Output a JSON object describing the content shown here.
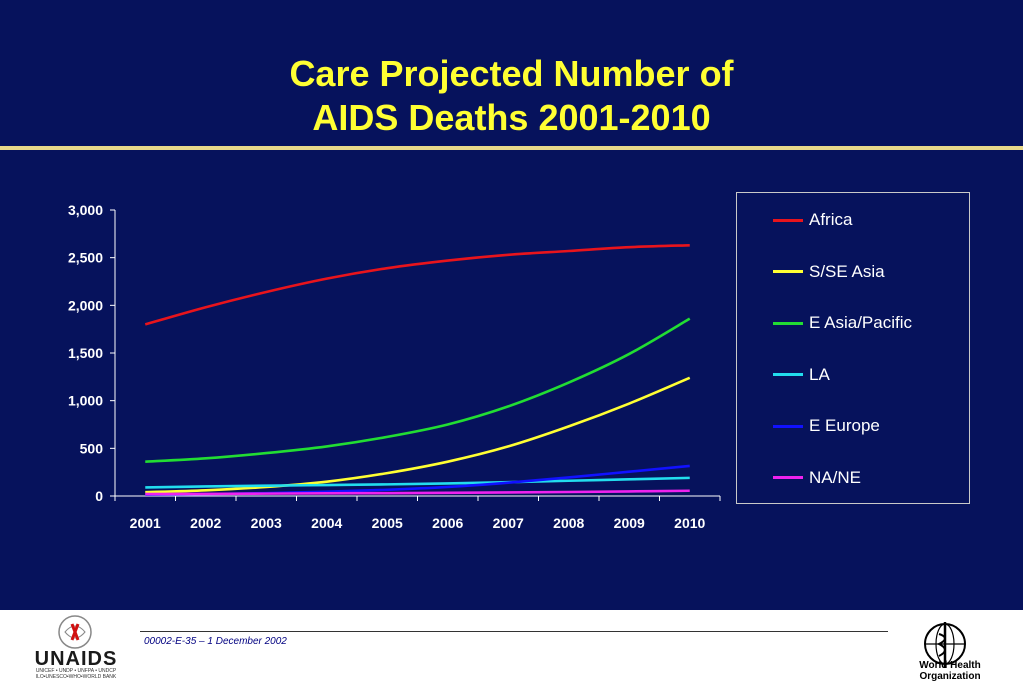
{
  "slide": {
    "title_line1": "Care Projected Number of",
    "title_line2": "AIDS Deaths 2001-2010",
    "background": "#06125c",
    "title_color": "#ffff33"
  },
  "chart_data": {
    "type": "line",
    "title": "Care Projected Number of AIDS Deaths 2001-2010",
    "xlabel": "",
    "ylabel": "",
    "categories": [
      "2001",
      "2002",
      "2003",
      "2004",
      "2005",
      "2006",
      "2007",
      "2008",
      "2009",
      "2010"
    ],
    "ylim": [
      0,
      3000
    ],
    "yticks": [
      0,
      500,
      1000,
      1500,
      2000,
      2500,
      3000
    ],
    "ytick_labels": [
      "0",
      "500",
      "1,000",
      "1,500",
      "2,000",
      "2,500",
      "3,000"
    ],
    "grid": false,
    "legend_position": "right",
    "series": [
      {
        "name": "Africa",
        "color": "#e8141c",
        "values": [
          1800,
          1980,
          2140,
          2280,
          2390,
          2470,
          2530,
          2570,
          2610,
          2630
        ]
      },
      {
        "name": "S/SE Asia",
        "color": "#ffff33",
        "values": [
          40,
          60,
          95,
          150,
          240,
          360,
          520,
          730,
          970,
          1240
        ]
      },
      {
        "name": "E Asia/Pacific",
        "color": "#22dd33",
        "values": [
          360,
          395,
          450,
          520,
          620,
          750,
          940,
          1190,
          1490,
          1860
        ]
      },
      {
        "name": "LA",
        "color": "#22ddee",
        "values": [
          90,
          100,
          108,
          115,
          122,
          132,
          145,
          160,
          175,
          190
        ]
      },
      {
        "name": "E Europe",
        "color": "#1111ff",
        "values": [
          15,
          20,
          30,
          45,
          65,
          95,
          140,
          195,
          255,
          315
        ]
      },
      {
        "name": "NA/NE",
        "color": "#ee22ee",
        "values": [
          20,
          22,
          25,
          28,
          30,
          33,
          37,
          42,
          48,
          55
        ]
      }
    ]
  },
  "footer": {
    "code": "00002-E-35 – 1 December 2002",
    "unaids_logo_text": "UNAIDS",
    "unaids_sub": "UNICEF • UNDP • UNFPA • UNDCP ILO•UNESCO•WHO•WORLD BANK",
    "who_line1": "World Health",
    "who_line2": "Organization"
  }
}
